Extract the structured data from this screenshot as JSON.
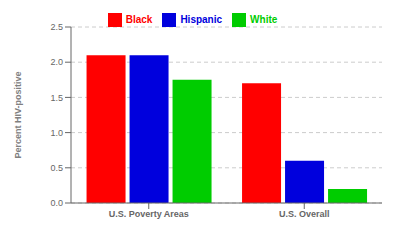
{
  "chart_data": {
    "type": "bar",
    "ylabel": "Percent HIV-positive",
    "categories": [
      "U.S. Poverty Areas",
      "U.S. Overall"
    ],
    "series": [
      {
        "name": "Black",
        "color": "#ff0000",
        "values": [
          2.1,
          1.7
        ]
      },
      {
        "name": "Hispanic",
        "color": "#0000dd",
        "values": [
          2.1,
          0.6
        ]
      },
      {
        "name": "White",
        "color": "#00cc00",
        "values": [
          1.75,
          0.2
        ]
      }
    ],
    "ylim": [
      0,
      2.5
    ],
    "yticks": [
      {
        "value": 0,
        "label": "0.0"
      },
      0.5,
      {
        "value": 1,
        "label": "1.0"
      },
      1.5,
      {
        "value": 2,
        "label": "2.0"
      },
      2.5
    ],
    "grid": true,
    "legend": "top"
  }
}
